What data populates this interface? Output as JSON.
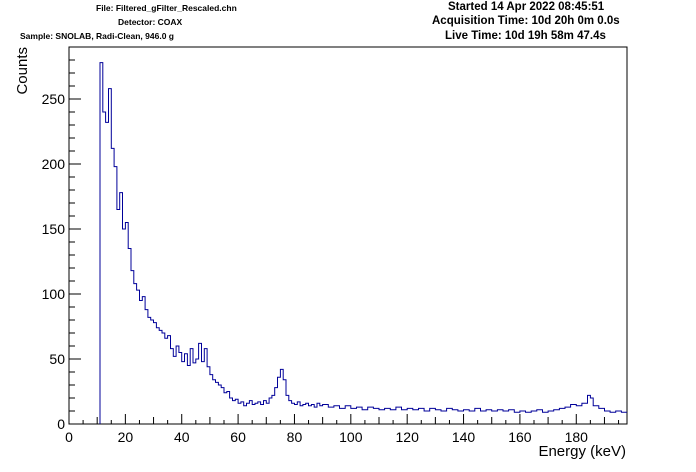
{
  "header": {
    "file": "File: Filtered_gFilter_Rescaled.chn",
    "detector": "Detector: COAX",
    "sample": "Sample: SNOLAB, Radi-Clean, 946.0 g",
    "started": "Started 14 Apr 2022 08:45:51",
    "acquisition": "Acquisition Time: 10d 20h 0m 0.0s",
    "live": "Live Time: 10d 19h 58m 47.4s"
  },
  "chart_data": {
    "type": "line",
    "xlabel": "Energy (keV)",
    "ylabel": "Counts",
    "xlim": [
      0,
      198
    ],
    "ylim": [
      0,
      290
    ],
    "x_ticks": [
      "0",
      "20",
      "40",
      "60",
      "80",
      "100",
      "120",
      "140",
      "160",
      "180"
    ],
    "y_ticks": [
      "0",
      "50",
      "100",
      "150",
      "200",
      "250"
    ],
    "grid": false,
    "line_color": "#000099",
    "series": [
      {
        "points": [
          [
            11,
            0
          ],
          [
            11,
            278
          ],
          [
            12,
            240
          ],
          [
            13,
            232
          ],
          [
            14,
            258
          ],
          [
            15,
            212
          ],
          [
            16,
            198
          ],
          [
            17,
            165
          ],
          [
            18,
            178
          ],
          [
            19,
            150
          ],
          [
            20,
            155
          ],
          [
            21,
            135
          ],
          [
            22,
            118
          ],
          [
            23,
            108
          ],
          [
            24,
            103
          ],
          [
            25,
            95
          ],
          [
            26,
            98
          ],
          [
            27,
            88
          ],
          [
            28,
            82
          ],
          [
            29,
            80
          ],
          [
            30,
            78
          ],
          [
            31,
            74
          ],
          [
            32,
            72
          ],
          [
            33,
            70
          ],
          [
            34,
            66
          ],
          [
            35,
            68
          ],
          [
            36,
            58
          ],
          [
            37,
            52
          ],
          [
            38,
            60
          ],
          [
            39,
            55
          ],
          [
            40,
            48
          ],
          [
            41,
            54
          ],
          [
            42,
            45
          ],
          [
            43,
            58
          ],
          [
            44,
            47
          ],
          [
            45,
            50
          ],
          [
            46,
            62
          ],
          [
            47,
            48
          ],
          [
            48,
            58
          ],
          [
            49,
            44
          ],
          [
            50,
            38
          ],
          [
            51,
            34
          ],
          [
            52,
            32
          ],
          [
            53,
            30
          ],
          [
            54,
            28
          ],
          [
            55,
            24
          ],
          [
            56,
            25
          ],
          [
            57,
            20
          ],
          [
            58,
            18
          ],
          [
            59,
            19
          ],
          [
            60,
            16
          ],
          [
            61,
            17
          ],
          [
            62,
            14
          ],
          [
            63,
            16
          ],
          [
            64,
            18
          ],
          [
            65,
            15
          ],
          [
            66,
            16
          ],
          [
            67,
            17
          ],
          [
            68,
            15
          ],
          [
            69,
            18
          ],
          [
            70,
            16
          ],
          [
            71,
            20
          ],
          [
            72,
            22
          ],
          [
            73,
            28
          ],
          [
            74,
            36
          ],
          [
            75,
            42
          ],
          [
            76,
            34
          ],
          [
            77,
            22
          ],
          [
            78,
            18
          ],
          [
            79,
            16
          ],
          [
            80,
            15
          ],
          [
            81,
            17
          ],
          [
            82,
            14
          ],
          [
            83,
            15
          ],
          [
            84,
            16
          ],
          [
            85,
            14
          ],
          [
            86,
            15
          ],
          [
            87,
            13
          ],
          [
            88,
            16
          ],
          [
            89,
            14
          ],
          [
            90,
            15
          ],
          [
            92,
            13
          ],
          [
            94,
            14
          ],
          [
            96,
            12
          ],
          [
            98,
            14
          ],
          [
            100,
            12
          ],
          [
            102,
            13
          ],
          [
            104,
            11
          ],
          [
            106,
            13
          ],
          [
            108,
            12
          ],
          [
            110,
            11
          ],
          [
            112,
            12
          ],
          [
            114,
            11
          ],
          [
            116,
            13
          ],
          [
            118,
            11
          ],
          [
            120,
            12
          ],
          [
            122,
            11
          ],
          [
            124,
            12
          ],
          [
            126,
            10
          ],
          [
            128,
            12
          ],
          [
            130,
            11
          ],
          [
            132,
            10
          ],
          [
            134,
            12
          ],
          [
            136,
            11
          ],
          [
            138,
            10
          ],
          [
            140,
            11
          ],
          [
            142,
            10
          ],
          [
            144,
            12
          ],
          [
            146,
            10
          ],
          [
            148,
            11
          ],
          [
            150,
            10
          ],
          [
            152,
            11
          ],
          [
            154,
            10
          ],
          [
            156,
            11
          ],
          [
            158,
            9
          ],
          [
            160,
            10
          ],
          [
            162,
            9
          ],
          [
            164,
            10
          ],
          [
            166,
            11
          ],
          [
            168,
            9
          ],
          [
            170,
            10
          ],
          [
            172,
            11
          ],
          [
            174,
            12
          ],
          [
            176,
            13
          ],
          [
            178,
            15
          ],
          [
            180,
            14
          ],
          [
            182,
            16
          ],
          [
            184,
            22
          ],
          [
            185,
            20
          ],
          [
            186,
            14
          ],
          [
            188,
            12
          ],
          [
            190,
            10
          ],
          [
            192,
            9
          ],
          [
            194,
            10
          ],
          [
            196,
            9
          ],
          [
            197,
            9
          ]
        ]
      }
    ]
  }
}
